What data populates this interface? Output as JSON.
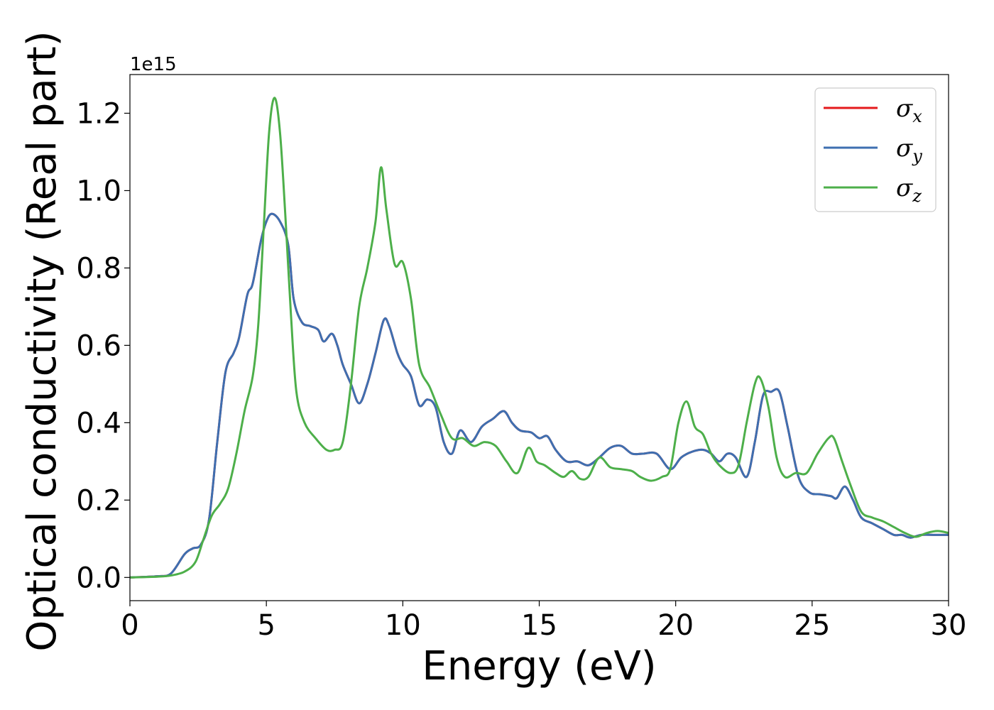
{
  "chart_data": {
    "type": "line",
    "title": "",
    "xlabel": "Energy (eV)",
    "ylabel": "Optical conductivity (Real part)",
    "y_offset_label": "1e15",
    "xlim": [
      0,
      30
    ],
    "ylim": [
      -0.06,
      1.3
    ],
    "x_ticks": [
      0,
      5,
      10,
      15,
      20,
      25,
      30
    ],
    "x_tick_labels": [
      "0",
      "5",
      "10",
      "15",
      "20",
      "25",
      "30"
    ],
    "y_ticks": [
      0.0,
      0.2,
      0.4,
      0.6,
      0.8,
      1.0,
      1.2
    ],
    "y_tick_labels": [
      "0.0",
      "0.2",
      "0.4",
      "0.6",
      "0.8",
      "1.0",
      "1.2"
    ],
    "grid": false,
    "legend_position": "top-right",
    "series": [
      {
        "name": "σx",
        "color": "#e41a1c",
        "points": [
          [
            0,
            0
          ],
          [
            1,
            0.003
          ],
          [
            1.5,
            0.01
          ],
          [
            2,
            0.06
          ],
          [
            2.3,
            0.075
          ],
          [
            2.6,
            0.085
          ],
          [
            2.9,
            0.15
          ],
          [
            3.2,
            0.35
          ],
          [
            3.5,
            0.53
          ],
          [
            3.8,
            0.58
          ],
          [
            4.0,
            0.62
          ],
          [
            4.3,
            0.73
          ],
          [
            4.5,
            0.76
          ],
          [
            4.8,
            0.87
          ],
          [
            5.0,
            0.92
          ],
          [
            5.2,
            0.94
          ],
          [
            5.5,
            0.92
          ],
          [
            5.8,
            0.86
          ],
          [
            6.0,
            0.72
          ],
          [
            6.3,
            0.66
          ],
          [
            6.6,
            0.65
          ],
          [
            6.9,
            0.64
          ],
          [
            7.1,
            0.61
          ],
          [
            7.4,
            0.63
          ],
          [
            7.6,
            0.6
          ],
          [
            7.8,
            0.55
          ],
          [
            8.1,
            0.5
          ],
          [
            8.4,
            0.45
          ],
          [
            8.7,
            0.5
          ],
          [
            9.0,
            0.58
          ],
          [
            9.3,
            0.665
          ],
          [
            9.5,
            0.65
          ],
          [
            9.8,
            0.58
          ],
          [
            10.0,
            0.55
          ],
          [
            10.3,
            0.52
          ],
          [
            10.6,
            0.445
          ],
          [
            10.9,
            0.46
          ],
          [
            11.2,
            0.44
          ],
          [
            11.5,
            0.35
          ],
          [
            11.8,
            0.32
          ],
          [
            12.1,
            0.38
          ],
          [
            12.5,
            0.35
          ],
          [
            12.9,
            0.39
          ],
          [
            13.3,
            0.41
          ],
          [
            13.7,
            0.43
          ],
          [
            14.0,
            0.4
          ],
          [
            14.3,
            0.38
          ],
          [
            14.7,
            0.375
          ],
          [
            15.0,
            0.36
          ],
          [
            15.3,
            0.365
          ],
          [
            15.6,
            0.33
          ],
          [
            16.0,
            0.3
          ],
          [
            16.4,
            0.3
          ],
          [
            16.8,
            0.29
          ],
          [
            17.2,
            0.31
          ],
          [
            17.6,
            0.335
          ],
          [
            18.0,
            0.34
          ],
          [
            18.4,
            0.32
          ],
          [
            18.8,
            0.32
          ],
          [
            19.3,
            0.32
          ],
          [
            19.8,
            0.28
          ],
          [
            20.2,
            0.31
          ],
          [
            20.6,
            0.325
          ],
          [
            21.0,
            0.33
          ],
          [
            21.3,
            0.32
          ],
          [
            21.6,
            0.3
          ],
          [
            21.9,
            0.32
          ],
          [
            22.2,
            0.31
          ],
          [
            22.6,
            0.26
          ],
          [
            22.9,
            0.35
          ],
          [
            23.2,
            0.47
          ],
          [
            23.5,
            0.48
          ],
          [
            23.8,
            0.48
          ],
          [
            24.1,
            0.39
          ],
          [
            24.5,
            0.26
          ],
          [
            24.9,
            0.22
          ],
          [
            25.3,
            0.215
          ],
          [
            25.7,
            0.21
          ],
          [
            25.9,
            0.205
          ],
          [
            26.2,
            0.235
          ],
          [
            26.5,
            0.2
          ],
          [
            26.8,
            0.155
          ],
          [
            27.2,
            0.14
          ],
          [
            27.6,
            0.125
          ],
          [
            28.0,
            0.11
          ],
          [
            28.3,
            0.11
          ],
          [
            28.6,
            0.103
          ],
          [
            29.0,
            0.11
          ],
          [
            29.5,
            0.11
          ],
          [
            30.0,
            0.11
          ]
        ]
      },
      {
        "name": "σy",
        "color": "#3e6fb0",
        "points": [
          [
            0,
            0
          ],
          [
            1,
            0.003
          ],
          [
            1.5,
            0.01
          ],
          [
            2,
            0.06
          ],
          [
            2.3,
            0.075
          ],
          [
            2.6,
            0.085
          ],
          [
            2.9,
            0.15
          ],
          [
            3.2,
            0.35
          ],
          [
            3.5,
            0.53
          ],
          [
            3.8,
            0.58
          ],
          [
            4.0,
            0.62
          ],
          [
            4.3,
            0.73
          ],
          [
            4.5,
            0.76
          ],
          [
            4.8,
            0.87
          ],
          [
            5.0,
            0.92
          ],
          [
            5.2,
            0.94
          ],
          [
            5.5,
            0.92
          ],
          [
            5.8,
            0.86
          ],
          [
            6.0,
            0.72
          ],
          [
            6.3,
            0.66
          ],
          [
            6.6,
            0.65
          ],
          [
            6.9,
            0.64
          ],
          [
            7.1,
            0.61
          ],
          [
            7.4,
            0.63
          ],
          [
            7.6,
            0.6
          ],
          [
            7.8,
            0.55
          ],
          [
            8.1,
            0.5
          ],
          [
            8.4,
            0.45
          ],
          [
            8.7,
            0.5
          ],
          [
            9.0,
            0.58
          ],
          [
            9.3,
            0.665
          ],
          [
            9.5,
            0.65
          ],
          [
            9.8,
            0.58
          ],
          [
            10.0,
            0.55
          ],
          [
            10.3,
            0.52
          ],
          [
            10.6,
            0.445
          ],
          [
            10.9,
            0.46
          ],
          [
            11.2,
            0.44
          ],
          [
            11.5,
            0.35
          ],
          [
            11.8,
            0.32
          ],
          [
            12.1,
            0.38
          ],
          [
            12.5,
            0.35
          ],
          [
            12.9,
            0.39
          ],
          [
            13.3,
            0.41
          ],
          [
            13.7,
            0.43
          ],
          [
            14.0,
            0.4
          ],
          [
            14.3,
            0.38
          ],
          [
            14.7,
            0.375
          ],
          [
            15.0,
            0.36
          ],
          [
            15.3,
            0.365
          ],
          [
            15.6,
            0.33
          ],
          [
            16.0,
            0.3
          ],
          [
            16.4,
            0.3
          ],
          [
            16.8,
            0.29
          ],
          [
            17.2,
            0.31
          ],
          [
            17.6,
            0.335
          ],
          [
            18.0,
            0.34
          ],
          [
            18.4,
            0.32
          ],
          [
            18.8,
            0.32
          ],
          [
            19.3,
            0.32
          ],
          [
            19.8,
            0.28
          ],
          [
            20.2,
            0.31
          ],
          [
            20.6,
            0.325
          ],
          [
            21.0,
            0.33
          ],
          [
            21.3,
            0.32
          ],
          [
            21.6,
            0.3
          ],
          [
            21.9,
            0.32
          ],
          [
            22.2,
            0.31
          ],
          [
            22.6,
            0.26
          ],
          [
            22.9,
            0.35
          ],
          [
            23.2,
            0.47
          ],
          [
            23.5,
            0.48
          ],
          [
            23.8,
            0.48
          ],
          [
            24.1,
            0.39
          ],
          [
            24.5,
            0.26
          ],
          [
            24.9,
            0.22
          ],
          [
            25.3,
            0.215
          ],
          [
            25.7,
            0.21
          ],
          [
            25.9,
            0.205
          ],
          [
            26.2,
            0.235
          ],
          [
            26.5,
            0.2
          ],
          [
            26.8,
            0.155
          ],
          [
            27.2,
            0.14
          ],
          [
            27.6,
            0.125
          ],
          [
            28.0,
            0.11
          ],
          [
            28.3,
            0.11
          ],
          [
            28.6,
            0.103
          ],
          [
            29.0,
            0.11
          ],
          [
            29.5,
            0.11
          ],
          [
            30.0,
            0.11
          ]
        ]
      },
      {
        "name": "σz",
        "color": "#4daf4a",
        "points": [
          [
            0,
            0
          ],
          [
            1,
            0.002
          ],
          [
            1.5,
            0.005
          ],
          [
            2,
            0.015
          ],
          [
            2.4,
            0.04
          ],
          [
            2.7,
            0.1
          ],
          [
            3.0,
            0.16
          ],
          [
            3.3,
            0.19
          ],
          [
            3.6,
            0.23
          ],
          [
            3.9,
            0.32
          ],
          [
            4.2,
            0.43
          ],
          [
            4.5,
            0.52
          ],
          [
            4.7,
            0.65
          ],
          [
            4.9,
            0.9
          ],
          [
            5.1,
            1.15
          ],
          [
            5.3,
            1.24
          ],
          [
            5.5,
            1.15
          ],
          [
            5.7,
            0.93
          ],
          [
            5.9,
            0.68
          ],
          [
            6.1,
            0.48
          ],
          [
            6.4,
            0.4
          ],
          [
            6.8,
            0.36
          ],
          [
            7.2,
            0.33
          ],
          [
            7.5,
            0.33
          ],
          [
            7.8,
            0.35
          ],
          [
            8.1,
            0.5
          ],
          [
            8.4,
            0.7
          ],
          [
            8.7,
            0.8
          ],
          [
            9.0,
            0.92
          ],
          [
            9.2,
            1.06
          ],
          [
            9.4,
            0.95
          ],
          [
            9.7,
            0.81
          ],
          [
            10.0,
            0.815
          ],
          [
            10.3,
            0.72
          ],
          [
            10.6,
            0.55
          ],
          [
            11.0,
            0.49
          ],
          [
            11.4,
            0.42
          ],
          [
            11.8,
            0.36
          ],
          [
            12.2,
            0.36
          ],
          [
            12.6,
            0.34
          ],
          [
            13.0,
            0.35
          ],
          [
            13.4,
            0.34
          ],
          [
            13.8,
            0.3
          ],
          [
            14.2,
            0.27
          ],
          [
            14.6,
            0.335
          ],
          [
            14.9,
            0.3
          ],
          [
            15.2,
            0.29
          ],
          [
            15.6,
            0.27
          ],
          [
            15.9,
            0.26
          ],
          [
            16.2,
            0.275
          ],
          [
            16.5,
            0.255
          ],
          [
            16.8,
            0.26
          ],
          [
            17.2,
            0.31
          ],
          [
            17.6,
            0.285
          ],
          [
            18.0,
            0.28
          ],
          [
            18.4,
            0.275
          ],
          [
            18.7,
            0.26
          ],
          [
            19.1,
            0.25
          ],
          [
            19.5,
            0.26
          ],
          [
            19.8,
            0.28
          ],
          [
            20.1,
            0.4
          ],
          [
            20.4,
            0.455
          ],
          [
            20.7,
            0.39
          ],
          [
            21.0,
            0.37
          ],
          [
            21.3,
            0.32
          ],
          [
            21.6,
            0.29
          ],
          [
            22.0,
            0.27
          ],
          [
            22.3,
            0.29
          ],
          [
            22.6,
            0.4
          ],
          [
            22.9,
            0.5
          ],
          [
            23.1,
            0.515
          ],
          [
            23.4,
            0.44
          ],
          [
            23.7,
            0.31
          ],
          [
            24.0,
            0.26
          ],
          [
            24.4,
            0.27
          ],
          [
            24.8,
            0.27
          ],
          [
            25.2,
            0.32
          ],
          [
            25.6,
            0.36
          ],
          [
            25.8,
            0.36
          ],
          [
            26.1,
            0.3
          ],
          [
            26.4,
            0.24
          ],
          [
            26.8,
            0.17
          ],
          [
            27.2,
            0.155
          ],
          [
            27.6,
            0.145
          ],
          [
            28.0,
            0.13
          ],
          [
            28.4,
            0.115
          ],
          [
            28.8,
            0.105
          ],
          [
            29.2,
            0.115
          ],
          [
            29.6,
            0.12
          ],
          [
            30.0,
            0.115
          ]
        ]
      }
    ]
  }
}
